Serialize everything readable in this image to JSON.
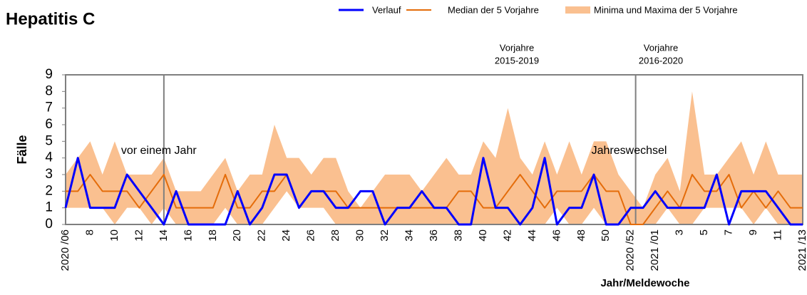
{
  "chart_data": {
    "type": "line",
    "title": "Hepatitis C",
    "y_label": "Fälle",
    "x_label": "Jahr/Meldewoche",
    "categories": [
      "2020 /06",
      null,
      "8",
      null,
      "10",
      null,
      "12",
      null,
      "14",
      null,
      "16",
      null,
      "18",
      null,
      "20",
      null,
      "22",
      null,
      "24",
      null,
      "26",
      null,
      "28",
      null,
      "30",
      null,
      "32",
      null,
      "34",
      null,
      "36",
      null,
      "38",
      null,
      "40",
      null,
      "42",
      null,
      "44",
      null,
      "46",
      null,
      "48",
      null,
      "50",
      null,
      "2020 /52",
      null,
      "2021 /01",
      null,
      "3",
      null,
      "5",
      null,
      "7",
      null,
      "9",
      null,
      "11",
      null,
      "2021 /13"
    ],
    "ylim": [
      0,
      9
    ],
    "yticks": [
      0,
      1,
      2,
      3,
      4,
      5,
      6,
      7,
      8,
      9
    ],
    "series": [
      {
        "name": "Verlauf",
        "color": "#0000ff",
        "values": [
          1,
          4,
          1,
          1,
          1,
          3,
          2,
          1,
          0,
          2,
          0,
          0,
          0,
          0,
          2,
          0,
          1,
          3,
          3,
          1,
          2,
          2,
          1,
          1,
          2,
          2,
          0,
          1,
          1,
          2,
          1,
          1,
          0,
          0,
          4,
          1,
          1,
          0,
          1,
          4,
          0,
          1,
          1,
          3,
          0,
          0,
          1,
          1,
          2,
          1,
          1,
          1,
          1,
          3,
          0,
          2,
          2,
          2,
          1,
          0,
          0
        ]
      },
      {
        "name": "Median der 5 Vorjahre",
        "color": "#e46c0a",
        "values": [
          2,
          2,
          3,
          2,
          2,
          2,
          1,
          2,
          3,
          1,
          1,
          1,
          1,
          3,
          1,
          1,
          2,
          2,
          3,
          1,
          2,
          2,
          2,
          1,
          1,
          1,
          1,
          1,
          1,
          1,
          1,
          1,
          2,
          2,
          1,
          1,
          2,
          3,
          2,
          1,
          2,
          2,
          2,
          3,
          2,
          2,
          0,
          0,
          1,
          2,
          1,
          3,
          2,
          2,
          3,
          1,
          2,
          1,
          2,
          1,
          1
        ]
      },
      {
        "name": "Minima und Maxima der 5 Vorjahre",
        "color": "#fac090",
        "high": [
          3,
          4,
          5,
          3,
          5,
          3,
          3,
          3,
          4,
          2,
          2,
          2,
          3,
          4,
          2,
          3,
          3,
          6,
          4,
          4,
          3,
          4,
          4,
          2,
          1,
          2,
          3,
          3,
          3,
          2,
          3,
          4,
          3,
          3,
          5,
          4,
          7,
          4,
          3,
          5,
          3,
          5,
          3,
          5,
          5,
          3,
          2,
          1,
          3,
          4,
          2,
          8,
          3,
          3,
          4,
          5,
          3,
          5,
          3,
          3,
          3
        ],
        "low": [
          1,
          1,
          1,
          1,
          0,
          1,
          1,
          0,
          1,
          0,
          0,
          0,
          0,
          1,
          0,
          0,
          0,
          1,
          2,
          1,
          1,
          1,
          0,
          0,
          0,
          0,
          0,
          0,
          0,
          0,
          0,
          0,
          0,
          0,
          0,
          0,
          0,
          0,
          0,
          0,
          1,
          0,
          0,
          1,
          0,
          0,
          0,
          0,
          0,
          1,
          0,
          0,
          1,
          1,
          1,
          1,
          0,
          1,
          0,
          0,
          0
        ]
      }
    ],
    "reference_lines": [
      {
        "x": 8,
        "label": "vor einem Jahr"
      },
      {
        "x": 46.4,
        "label": "Jahreswechsel"
      }
    ],
    "annotations": [
      [
        "Vorjahre",
        "2015-2019"
      ],
      [
        "Vorjahre",
        "2016-2020"
      ]
    ]
  }
}
